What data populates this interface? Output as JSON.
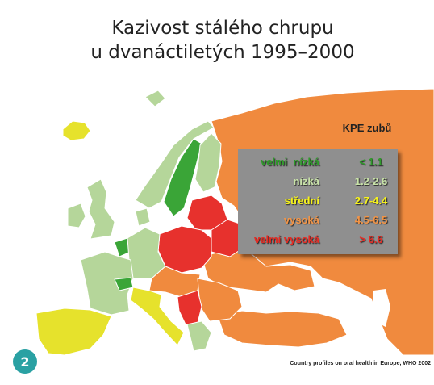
{
  "title": [
    "Kazivost stálého chrupu",
    "u dvanáctiletých 1995–2000"
  ],
  "legend": {
    "title": "KPE zubů",
    "items": [
      {
        "label": "velmi  nízká",
        "range": "< 1.1",
        "color": "#3aa537",
        "text_color": "#2f9a2a"
      },
      {
        "label": "nízká",
        "range": "1.2-2.6",
        "color": "#b5d69a",
        "text_color": "#c8e2a8"
      },
      {
        "label": "střední",
        "range": "2.7-4.4",
        "color": "#e6e22c",
        "text_color": "#f6f21a"
      },
      {
        "label": "vysoká",
        "range": "4.5-6.5",
        "color": "#f08a3e",
        "text_color": "#f29446"
      },
      {
        "label": "velmi vysoká",
        "range": "> 6.6",
        "color": "#e7312d",
        "text_color": "#e52a22"
      }
    ]
  },
  "badge": "2",
  "source": "Country profiles on oral health in Europe, WHO 2002"
}
